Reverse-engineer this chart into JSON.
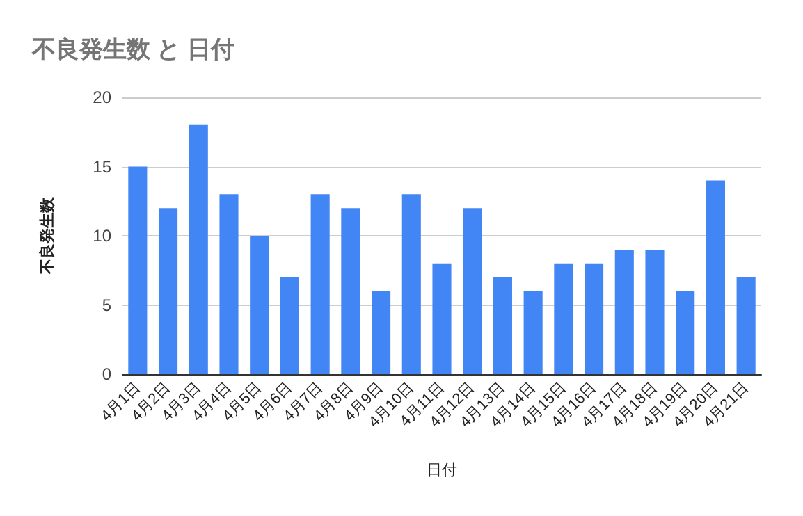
{
  "chart_data": {
    "type": "bar",
    "title": "不良発生数 と 日付",
    "xlabel": "日付",
    "ylabel": "不良発生数",
    "categories": [
      "4月1日",
      "4月2日",
      "4月3日",
      "4月4日",
      "4月5日",
      "4月6日",
      "4月7日",
      "4月8日",
      "4月9日",
      "4月10日",
      "4月11日",
      "4月12日",
      "4月13日",
      "4月14日",
      "4月15日",
      "4月16日",
      "4月17日",
      "4月18日",
      "4月19日",
      "4月20日",
      "4月21日"
    ],
    "values": [
      15,
      12,
      18,
      13,
      10,
      7,
      13,
      12,
      6,
      13,
      8,
      12,
      7,
      6,
      8,
      8,
      9,
      9,
      6,
      14,
      7
    ],
    "color": "#4285f4",
    "ylim": [
      0,
      20
    ],
    "yticks": [
      0,
      5,
      10,
      15,
      20
    ],
    "grid": "y"
  }
}
